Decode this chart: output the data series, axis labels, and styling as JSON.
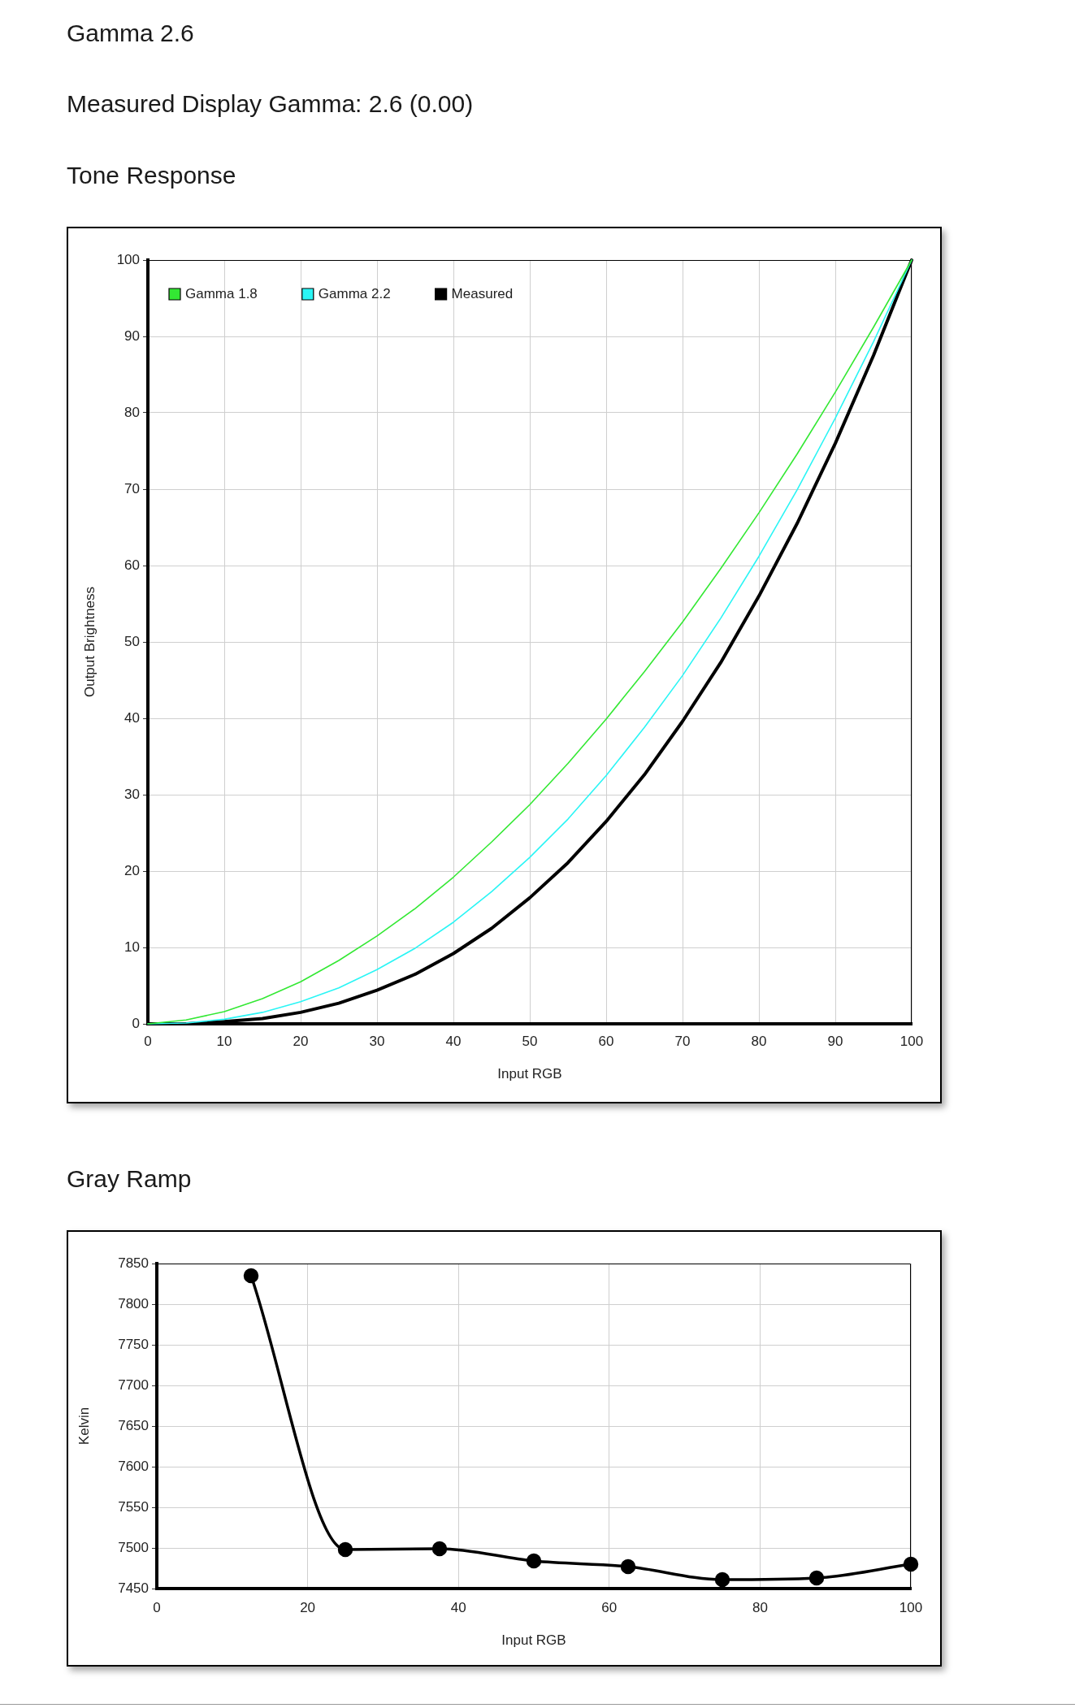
{
  "chart_data": [
    {
      "type": "line",
      "title": "Tone Response",
      "annotations": [
        "Gamma 2.6",
        "Measured Display Gamma: 2.6 (0.00)"
      ],
      "xlabel": "Input RGB",
      "ylabel": "Output Brightness",
      "x": [
        0,
        5,
        10,
        15,
        20,
        25,
        30,
        35,
        40,
        45,
        50,
        55,
        60,
        65,
        70,
        75,
        80,
        85,
        90,
        95,
        100
      ],
      "series": [
        {
          "name": "Gamma 1.8",
          "color": "#33e833",
          "values": [
            0,
            0.5,
            1.6,
            3.3,
            5.5,
            8.3,
            11.5,
            15.1,
            19.2,
            23.8,
            28.7,
            34.1,
            39.9,
            46.1,
            52.6,
            59.6,
            66.9,
            74.6,
            82.7,
            91.2,
            100
          ]
        },
        {
          "name": "Gamma 2.2",
          "color": "#2af5f5",
          "values": [
            0,
            0.1,
            0.6,
            1.5,
            2.9,
            4.7,
            7.1,
            9.9,
            13.3,
            17.3,
            21.8,
            26.8,
            32.5,
            38.8,
            45.6,
            53.1,
            61.2,
            69.9,
            79.3,
            89.3,
            100
          ]
        },
        {
          "name": "Measured",
          "color": "#000000",
          "values": [
            0,
            0,
            0.3,
            0.7,
            1.5,
            2.7,
            4.4,
            6.5,
            9.2,
            12.5,
            16.5,
            21.1,
            26.5,
            32.6,
            39.6,
            47.3,
            56.0,
            65.5,
            76.0,
            87.5,
            100
          ]
        }
      ],
      "xlim": [
        0,
        100
      ],
      "ylim": [
        0,
        100
      ],
      "xticks": [
        0,
        10,
        20,
        30,
        40,
        50,
        60,
        70,
        80,
        90,
        100
      ],
      "yticks": [
        0,
        10,
        20,
        30,
        40,
        50,
        60,
        70,
        80,
        90,
        100
      ],
      "grid": true,
      "legend": "top left",
      "marker": "none",
      "line_style": "solid"
    },
    {
      "type": "line",
      "title": "Gray Ramp",
      "xlabel": "Input RGB",
      "ylabel": "Kelvin",
      "x": [
        12.5,
        25,
        37.5,
        50,
        62.5,
        75,
        87.5,
        100
      ],
      "series": [
        {
          "color": "#000000",
          "values": [
            7835,
            7498,
            7499,
            7484,
            7477,
            7461,
            7463,
            7480
          ]
        }
      ],
      "xlim": [
        0,
        100
      ],
      "ylim": [
        7450,
        7850
      ],
      "xticks": [
        0,
        20,
        40,
        60,
        80,
        100
      ],
      "yticks": [
        7450,
        7500,
        7550,
        7600,
        7650,
        7700,
        7750,
        7800,
        7850
      ],
      "grid": true,
      "marker": "circle",
      "line_style": "solid"
    }
  ]
}
